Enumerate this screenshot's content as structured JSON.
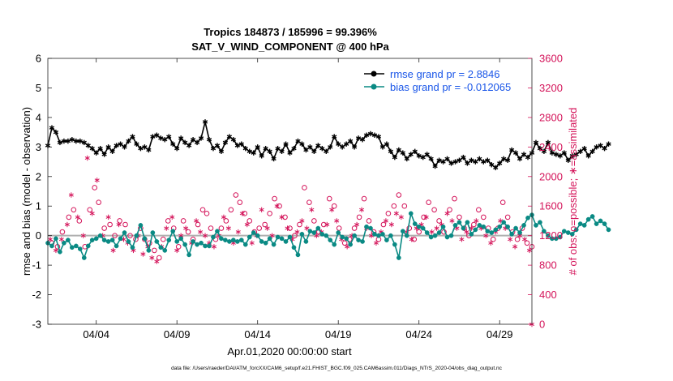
{
  "chart_data": {
    "type": "line",
    "title": "Tropics 184873 / 185996 = 99.396%",
    "subtitle": "SAT_V_WIND_COMPONENT @ 400 hPa",
    "xlabel": "Apr.01,2020 00:00:00 start",
    "ylabel": "rmse and bias (model - observation)",
    "ylabel_right": "# of obs: o=possible; ∗=assimilated",
    "footer": "data file: /Users/raeder/DAI/ATM_forcXX/CAM6_setup/f.e21.FHIST_BGC.f09_025.CAM6assim.011/Diags_NTrS_2020-04/obs_diag_output.nc",
    "xlim": [
      1,
      31
    ],
    "ylim": [
      -3,
      6
    ],
    "ylim_right": [
      0,
      3600
    ],
    "x_ticks": [
      {
        "x": 4,
        "label": "04/04"
      },
      {
        "x": 9,
        "label": "04/09"
      },
      {
        "x": 14,
        "label": "04/14"
      },
      {
        "x": 19,
        "label": "04/19"
      },
      {
        "x": 24,
        "label": "04/24"
      },
      {
        "x": 29,
        "label": "04/29"
      }
    ],
    "y_ticks": [
      -3,
      -2,
      -1,
      0,
      1,
      2,
      3,
      4,
      5,
      6
    ],
    "y_ticks_right": [
      0,
      400,
      800,
      1200,
      1600,
      2000,
      2400,
      2800,
      3200,
      3600
    ],
    "legend_position": "top-right",
    "colors": {
      "rmse": "#000000",
      "bias": "#0a8a84",
      "obs": "#d4145a",
      "zero": "#b0b0b0",
      "legend_text": "#1a56e8"
    },
    "series": [
      {
        "name": "rmse grand pr = 2.8846",
        "x_start": 1.0,
        "x_step": 0.25,
        "values": [
          3.05,
          3.65,
          3.5,
          3.15,
          3.2,
          3.2,
          3.25,
          3.2,
          3.2,
          3.15,
          3.05,
          2.95,
          2.8,
          2.95,
          2.75,
          3.0,
          2.85,
          3.05,
          3.1,
          3.0,
          3.2,
          3.35,
          3.1,
          2.95,
          3.0,
          2.9,
          3.35,
          3.4,
          3.3,
          3.25,
          3.35,
          3.1,
          2.95,
          3.3,
          3.15,
          3.05,
          3.25,
          3.15,
          3.3,
          3.85,
          3.25,
          2.95,
          3.05,
          2.85,
          3.15,
          3.35,
          3.25,
          3.05,
          3.1,
          2.95,
          2.85,
          2.8,
          3.0,
          2.7,
          2.95,
          2.85,
          2.6,
          2.95,
          2.85,
          3.1,
          2.8,
          2.95,
          3.2,
          3.1,
          2.9,
          3.0,
          2.85,
          3.05,
          2.95,
          2.85,
          3.0,
          3.35,
          3.1,
          3.0,
          3.1,
          3.2,
          3.0,
          3.3,
          3.25,
          3.4,
          3.45,
          3.4,
          3.35,
          3.0,
          3.1,
          2.85,
          2.65,
          2.9,
          2.8,
          2.6,
          2.75,
          2.85,
          2.7,
          2.65,
          2.75,
          2.6,
          2.35,
          2.55,
          2.5,
          2.6,
          2.45,
          2.5,
          2.55,
          2.65,
          2.45,
          2.55,
          2.5,
          2.6,
          2.5,
          2.55,
          2.4,
          2.3,
          2.45,
          2.6,
          2.55,
          2.9,
          2.8,
          2.6,
          2.75,
          2.65,
          2.8,
          3.15,
          2.95,
          2.85,
          3.15,
          2.8,
          2.75,
          2.7,
          2.8,
          2.55,
          2.7,
          2.75,
          2.85,
          2.95,
          2.7,
          2.85,
          3.0,
          3.05,
          2.95,
          3.1
        ]
      },
      {
        "name": "bias grand pr = -0.012065",
        "x_start": 1.0,
        "x_step": 0.25,
        "values": [
          -0.25,
          -0.35,
          -0.1,
          -0.55,
          -0.25,
          -0.15,
          -0.4,
          -0.35,
          -0.45,
          -0.75,
          -0.35,
          -0.15,
          -0.1,
          0.0,
          -0.15,
          -0.2,
          -0.15,
          -0.35,
          -0.1,
          0.1,
          -0.2,
          -0.4,
          0.0,
          0.35,
          -0.1,
          -0.5,
          0.1,
          -0.2,
          -0.4,
          -0.5,
          -0.15,
          0.15,
          -0.2,
          -0.1,
          -0.3,
          -0.65,
          -0.2,
          -0.3,
          -0.25,
          -0.35,
          -0.35,
          -0.05,
          0.15,
          -0.1,
          -0.15,
          -0.2,
          -0.15,
          -0.2,
          -0.15,
          -0.3,
          -0.05,
          0.1,
          0.0,
          -0.2,
          -0.25,
          -0.1,
          -0.3,
          -0.05,
          -0.1,
          -0.2,
          -0.05,
          -0.4,
          -0.65,
          0.05,
          -0.2,
          0.15,
          0.1,
          0.25,
          0.05,
          0.0,
          -0.15,
          -0.3,
          0.1,
          -0.05,
          -0.1,
          -0.3,
          0.0,
          -0.15,
          -0.2,
          0.3,
          0.25,
          0.05,
          0.0,
          0.05,
          -0.15,
          0.0,
          -0.3,
          -0.75,
          0.15,
          0.0,
          0.75,
          0.4,
          0.3,
          0.25,
          0.1,
          -0.05,
          0.0,
          0.1,
          0.3,
          -0.05,
          0.0,
          0.35,
          0.45,
          0.25,
          0.45,
          0.05,
          0.2,
          0.35,
          0.3,
          0.15,
          0.1,
          0.2,
          0.3,
          0.45,
          0.3,
          0.05,
          0.25,
          0.1,
          0.35,
          0.6,
          0.7,
          0.35,
          0.45,
          0.15,
          0.0,
          -0.1,
          -0.1,
          -0.05,
          0.15,
          0.1,
          0.05,
          0.2,
          0.4,
          0.35,
          0.55,
          0.65,
          0.4,
          0.5,
          0.4,
          0.2
        ]
      }
    ],
    "obs_points": [
      [
        1.25,
        1100
      ],
      [
        1.6,
        1050
      ],
      [
        1.9,
        1250
      ],
      [
        2.3,
        1450
      ],
      [
        2.6,
        1550
      ],
      [
        2.95,
        1400
      ],
      [
        3.3,
        1050
      ],
      [
        3.6,
        1550
      ],
      [
        3.9,
        1850
      ],
      [
        4.15,
        1650
      ],
      [
        4.5,
        1300
      ],
      [
        4.85,
        1350
      ],
      [
        5.15,
        1200
      ],
      [
        5.45,
        1400
      ],
      [
        5.8,
        1350
      ],
      [
        6.1,
        1200
      ],
      [
        6.45,
        1150
      ],
      [
        6.75,
        1300
      ],
      [
        7.0,
        1150
      ],
      [
        7.3,
        1100
      ],
      [
        7.6,
        1000
      ],
      [
        7.9,
        900
      ],
      [
        8.15,
        1150
      ],
      [
        8.45,
        1400
      ],
      [
        8.8,
        1300
      ],
      [
        9.1,
        1050
      ],
      [
        9.4,
        1400
      ],
      [
        9.7,
        1250
      ],
      [
        10.0,
        1150
      ],
      [
        10.3,
        1350
      ],
      [
        10.6,
        1550
      ],
      [
        10.85,
        1500
      ],
      [
        11.1,
        1300
      ],
      [
        11.4,
        1150
      ],
      [
        11.75,
        1300
      ],
      [
        12.05,
        1400
      ],
      [
        12.35,
        1550
      ],
      [
        12.65,
        1750
      ],
      [
        12.9,
        1650
      ],
      [
        13.2,
        1500
      ],
      [
        13.5,
        1400
      ],
      [
        13.8,
        1250
      ],
      [
        14.1,
        1300
      ],
      [
        14.45,
        1350
      ],
      [
        14.75,
        1500
      ],
      [
        15.05,
        1700
      ],
      [
        15.35,
        1600
      ],
      [
        15.7,
        1450
      ],
      [
        16.0,
        1300
      ],
      [
        16.3,
        1200
      ],
      [
        16.6,
        1350
      ],
      [
        16.9,
        1850
      ],
      [
        17.2,
        1650
      ],
      [
        17.5,
        1400
      ],
      [
        17.8,
        1250
      ],
      [
        18.1,
        1350
      ],
      [
        18.45,
        1700
      ],
      [
        18.75,
        1600
      ],
      [
        19.05,
        1300
      ],
      [
        19.4,
        1100
      ],
      [
        19.7,
        1150
      ],
      [
        20.0,
        1300
      ],
      [
        20.3,
        1450
      ],
      [
        20.6,
        1700
      ],
      [
        20.9,
        1400
      ],
      [
        21.2,
        1250
      ],
      [
        21.5,
        1150
      ],
      [
        21.8,
        1350
      ],
      [
        22.1,
        1500
      ],
      [
        22.45,
        1600
      ],
      [
        22.75,
        1750
      ],
      [
        23.1,
        1600
      ],
      [
        23.4,
        1300
      ],
      [
        23.7,
        1150
      ],
      [
        24.0,
        1250
      ],
      [
        24.3,
        1450
      ],
      [
        24.6,
        1650
      ],
      [
        24.95,
        1550
      ],
      [
        25.25,
        1400
      ],
      [
        25.55,
        1250
      ],
      [
        25.9,
        1550
      ],
      [
        26.2,
        1700
      ],
      [
        26.5,
        1450
      ],
      [
        26.8,
        1300
      ],
      [
        27.1,
        1200
      ],
      [
        27.4,
        1350
      ],
      [
        27.7,
        1550
      ],
      [
        28.0,
        1450
      ],
      [
        28.3,
        1300
      ],
      [
        28.6,
        1150
      ],
      [
        28.9,
        1300
      ],
      [
        29.2,
        1650
      ],
      [
        29.5,
        1450
      ],
      [
        29.8,
        1250
      ],
      [
        30.1,
        1150
      ],
      [
        30.4,
        1300
      ],
      [
        30.7,
        1100
      ],
      [
        31.0,
        1050
      ]
    ],
    "assim_points": [
      [
        1.15,
        1150
      ],
      [
        1.5,
        1000
      ],
      [
        1.85,
        1150
      ],
      [
        2.2,
        1350
      ],
      [
        2.45,
        1750
      ],
      [
        2.85,
        1450
      ],
      [
        3.2,
        1200
      ],
      [
        3.45,
        2250
      ],
      [
        3.75,
        1500
      ],
      [
        4.05,
        1950
      ],
      [
        4.4,
        1200
      ],
      [
        4.75,
        1450
      ],
      [
        5.05,
        1000
      ],
      [
        5.4,
        1350
      ],
      [
        5.7,
        1150
      ],
      [
        5.95,
        1100
      ],
      [
        6.3,
        1000
      ],
      [
        6.6,
        1200
      ],
      [
        6.9,
        950
      ],
      [
        7.2,
        1050
      ],
      [
        7.45,
        900
      ],
      [
        7.75,
        850
      ],
      [
        8.05,
        1050
      ],
      [
        8.35,
        1300
      ],
      [
        8.7,
        1450
      ],
      [
        9.0,
        1000
      ],
      [
        9.25,
        1200
      ],
      [
        9.55,
        1300
      ],
      [
        9.9,
        1100
      ],
      [
        10.2,
        1400
      ],
      [
        10.45,
        1250
      ],
      [
        10.75,
        1200
      ],
      [
        11.0,
        1100
      ],
      [
        11.3,
        1050
      ],
      [
        11.6,
        1200
      ],
      [
        11.9,
        1450
      ],
      [
        12.2,
        1300
      ],
      [
        12.5,
        1100
      ],
      [
        12.8,
        1250
      ],
      [
        13.05,
        1500
      ],
      [
        13.35,
        1350
      ],
      [
        13.65,
        1100
      ],
      [
        13.95,
        1200
      ],
      [
        14.25,
        1550
      ],
      [
        14.6,
        1300
      ],
      [
        14.9,
        1200
      ],
      [
        15.2,
        1600
      ],
      [
        15.5,
        1450
      ],
      [
        15.85,
        1300
      ],
      [
        16.15,
        1150
      ],
      [
        16.45,
        1250
      ],
      [
        16.75,
        1400
      ],
      [
        17.05,
        1300
      ],
      [
        17.35,
        1550
      ],
      [
        17.65,
        1200
      ],
      [
        17.95,
        1250
      ],
      [
        18.3,
        1350
      ],
      [
        18.6,
        1550
      ],
      [
        18.9,
        1400
      ],
      [
        19.2,
        1150
      ],
      [
        19.55,
        1050
      ],
      [
        19.85,
        1200
      ],
      [
        20.15,
        1350
      ],
      [
        20.45,
        1550
      ],
      [
        20.75,
        1300
      ],
      [
        21.05,
        1200
      ],
      [
        21.35,
        1100
      ],
      [
        21.65,
        1250
      ],
      [
        21.95,
        1400
      ],
      [
        22.3,
        1350
      ],
      [
        22.6,
        1500
      ],
      [
        22.9,
        1450
      ],
      [
        23.25,
        1250
      ],
      [
        23.55,
        1150
      ],
      [
        23.85,
        1300
      ],
      [
        24.15,
        1350
      ],
      [
        24.45,
        1450
      ],
      [
        24.8,
        1250
      ],
      [
        25.1,
        1300
      ],
      [
        25.4,
        1350
      ],
      [
        25.75,
        1500
      ],
      [
        26.05,
        1400
      ],
      [
        26.35,
        1300
      ],
      [
        26.65,
        1150
      ],
      [
        26.95,
        1250
      ],
      [
        27.25,
        1300
      ],
      [
        27.55,
        1400
      ],
      [
        27.85,
        1300
      ],
      [
        28.15,
        1200
      ],
      [
        28.45,
        1100
      ],
      [
        28.75,
        1250
      ],
      [
        29.05,
        1400
      ],
      [
        29.35,
        1300
      ],
      [
        29.65,
        1150
      ],
      [
        29.95,
        1050
      ],
      [
        30.25,
        1200
      ],
      [
        30.55,
        1150
      ],
      [
        30.85,
        1000
      ],
      [
        31.0,
        0
      ]
    ]
  }
}
